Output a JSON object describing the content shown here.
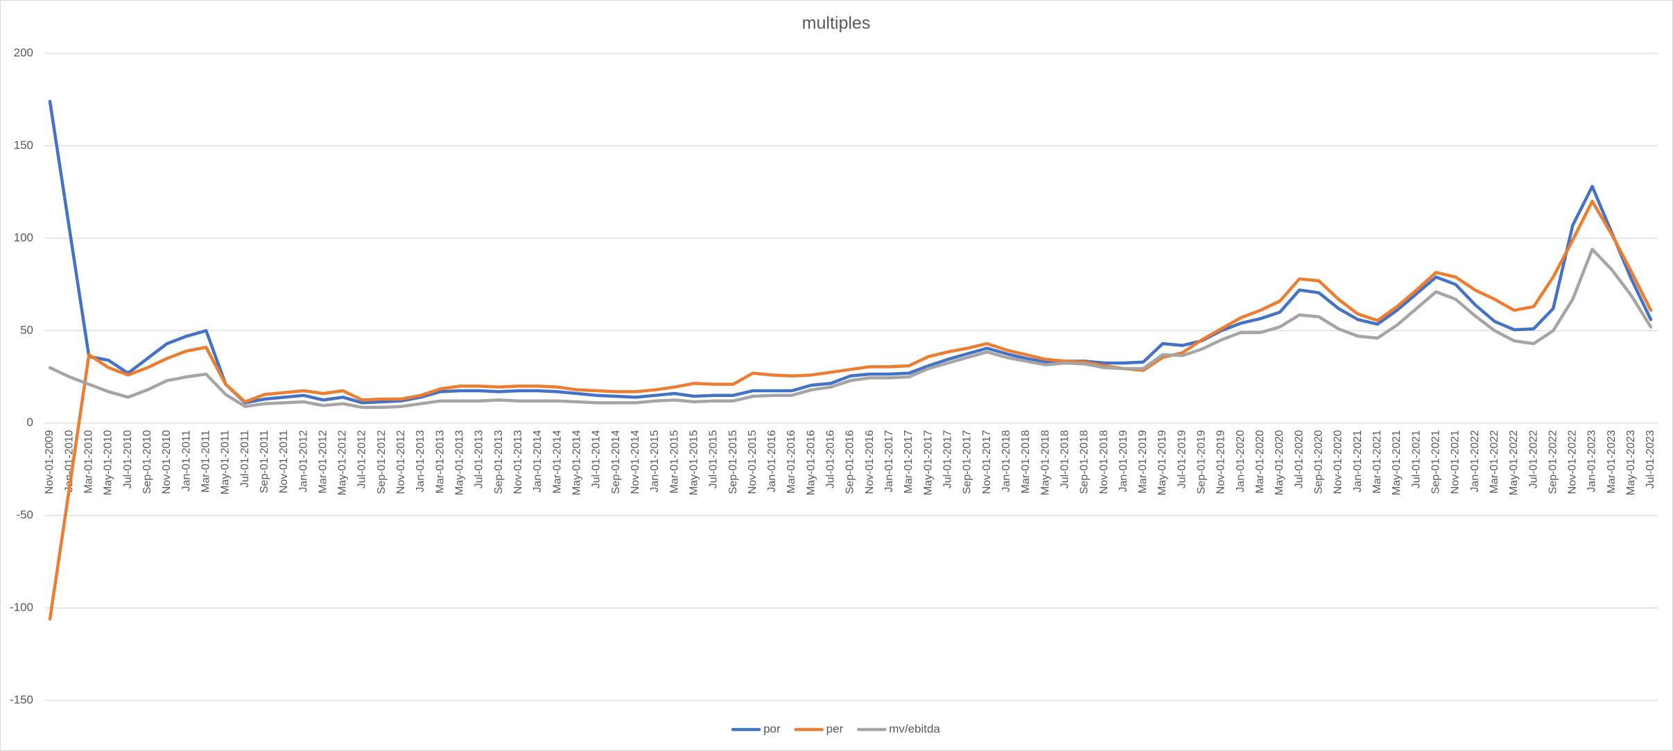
{
  "chart_data": {
    "type": "line",
    "title": "multiples",
    "categories": [
      "Nov-01-2009",
      "Jan-01-2010",
      "Mar-01-2010",
      "May-01-2010",
      "Jul-01-2010",
      "Sep-01-2010",
      "Nov-01-2010",
      "Jan-01-2011",
      "Mar-01-2011",
      "May-01-2011",
      "Jul-01-2011",
      "Sep-01-2011",
      "Nov-01-2011",
      "Jan-01-2012",
      "Mar-01-2012",
      "May-01-2012",
      "Jul-01-2012",
      "Sep-01-2012",
      "Nov-01-2012",
      "Jan-01-2013",
      "Mar-01-2013",
      "May-01-2013",
      "Jul-01-2013",
      "Sep-01-2013",
      "Nov-01-2013",
      "Jan-01-2014",
      "Mar-01-2014",
      "May-01-2014",
      "Jul-01-2014",
      "Sep-01-2014",
      "Nov-01-2014",
      "Jan-01-2015",
      "Mar-01-2015",
      "May-01-2015",
      "Jul-01-2015",
      "Sep-01-2015",
      "Nov-01-2015",
      "Jan-01-2016",
      "Mar-01-2016",
      "May-01-2016",
      "Jul-01-2016",
      "Sep-01-2016",
      "Nov-01-2016",
      "Jan-01-2017",
      "Mar-01-2017",
      "May-01-2017",
      "Jul-01-2017",
      "Sep-01-2017",
      "Nov-01-2017",
      "Jan-01-2018",
      "Mar-01-2018",
      "May-01-2018",
      "Jul-01-2018",
      "Sep-01-2018",
      "Nov-01-2018",
      "Jan-01-2019",
      "Mar-01-2019",
      "May-01-2019",
      "Jul-01-2019",
      "Sep-01-2019",
      "Nov-01-2019",
      "Jan-01-2020",
      "Mar-01-2020",
      "May-01-2020",
      "Jul-01-2020",
      "Sep-01-2020",
      "Nov-01-2020",
      "Jan-01-2021",
      "Mar-01-2021",
      "May-01-2021",
      "Jul-01-2021",
      "Sep-01-2021",
      "Nov-01-2021",
      "Jan-01-2022",
      "Mar-01-2022",
      "May-01-2022",
      "Jul-01-2022",
      "Sep-01-2022",
      "Nov-01-2022",
      "Jan-01-2023",
      "Mar-01-2023",
      "May-01-2023",
      "Jul-01-2023"
    ],
    "series": [
      {
        "name": "por",
        "color": "#4472c4",
        "values": [
          174,
          105,
          36,
          34,
          27,
          35,
          43,
          47,
          50,
          21,
          11,
          13,
          14,
          15,
          12.5,
          14,
          11,
          11.5,
          12,
          14,
          17,
          17.5,
          17.5,
          17,
          17.5,
          17.5,
          17,
          16,
          15,
          14.5,
          14,
          15,
          16,
          14.5,
          15,
          15,
          17.5,
          17.5,
          17.5,
          20.5,
          21.5,
          25.5,
          26.5,
          26.5,
          27,
          31,
          34.5,
          37.5,
          40.5,
          37.5,
          35,
          33,
          33.5,
          33.5,
          32.5,
          32.5,
          33,
          43,
          42,
          44.5,
          50,
          54,
          56.5,
          60,
          72,
          70.5,
          62,
          56,
          53.5,
          61,
          70,
          79,
          75,
          64,
          55,
          50.5,
          51,
          62,
          107,
          128,
          103,
          78,
          56
        ]
      },
      {
        "name": "per",
        "color": "#ed7d31",
        "values": [
          -106,
          -35,
          37,
          30,
          26,
          30,
          35,
          39,
          41,
          21,
          11.5,
          15.5,
          16.5,
          17.5,
          16,
          17.5,
          12.5,
          13,
          13,
          15,
          18.5,
          20,
          20,
          19.5,
          20,
          20,
          19.5,
          18,
          17.5,
          17,
          17,
          18,
          19.5,
          21.5,
          21,
          21,
          27,
          26,
          25.5,
          26,
          27.5,
          29,
          30.5,
          30.5,
          31,
          36,
          38.5,
          40.5,
          43,
          39.5,
          37,
          34.5,
          33.5,
          33,
          31,
          29.5,
          28.5,
          35.5,
          38,
          45,
          51,
          57,
          61,
          66,
          78,
          77,
          67,
          59,
          55.5,
          63,
          72,
          81.5,
          79,
          72,
          67,
          61,
          63,
          79,
          99,
          120,
          102,
          82,
          61
        ]
      },
      {
        "name": "mv/ebitda",
        "color": "#a5a5a5",
        "values": [
          30,
          25,
          21,
          17,
          14,
          18,
          23,
          25,
          26.5,
          15.5,
          9,
          10.5,
          11,
          11.5,
          9.5,
          10.5,
          8.5,
          8.5,
          9,
          10.5,
          12,
          12,
          12,
          12.5,
          12,
          12,
          12,
          11.5,
          11,
          11,
          11,
          12,
          12.5,
          11.5,
          12,
          12,
          14.5,
          15,
          15,
          18,
          19.5,
          23,
          24.5,
          24.5,
          25,
          29.5,
          32.5,
          35.5,
          38.5,
          35.5,
          33.5,
          31.5,
          32.5,
          32,
          30,
          29.5,
          29.5,
          37,
          36.5,
          40,
          45,
          49,
          49,
          52,
          58.5,
          57.5,
          51,
          47,
          46,
          53,
          62,
          71,
          67,
          58,
          50,
          44.5,
          43,
          50,
          67,
          94,
          83,
          69,
          52
        ]
      }
    ],
    "ylim": [
      -150,
      200
    ],
    "yticks": [
      -150,
      -100,
      -50,
      0,
      50,
      100,
      150,
      200
    ],
    "grid": true,
    "legend": "bottom"
  }
}
